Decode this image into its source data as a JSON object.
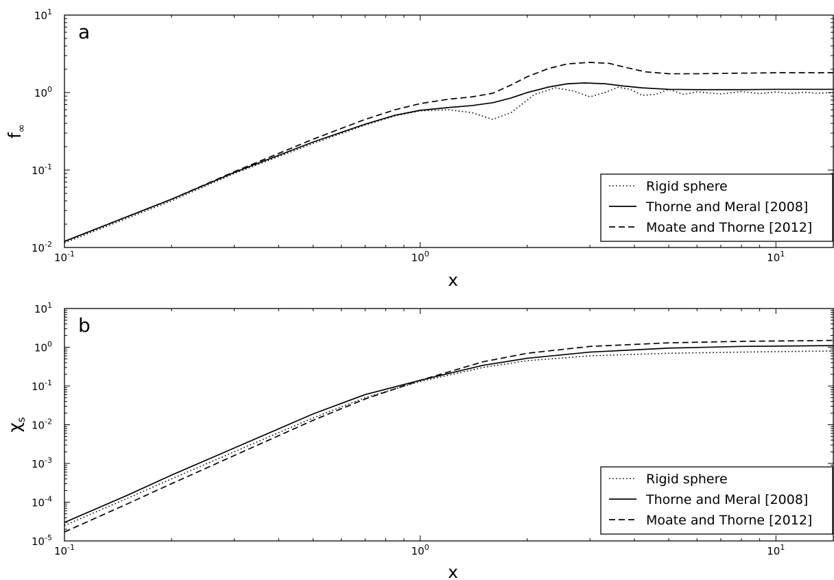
{
  "chart_data": [
    {
      "type": "line",
      "panel_label": "a",
      "xlabel": "x",
      "ylabel": "f",
      "ylabel_sub": "∞",
      "x_scale": "log",
      "y_scale": "log",
      "xlim": [
        0.1,
        14.5
      ],
      "ylim": [
        0.01,
        10
      ],
      "x_ticks": [
        {
          "value": 0.1,
          "base": "10",
          "exp": "-1"
        },
        {
          "value": 1,
          "base": "10",
          "exp": "0"
        },
        {
          "value": 10,
          "base": "10",
          "exp": "1"
        }
      ],
      "y_ticks": [
        {
          "value": 0.01,
          "base": "10",
          "exp": "-2"
        },
        {
          "value": 0.1,
          "base": "10",
          "exp": "-1"
        },
        {
          "value": 1,
          "base": "10",
          "exp": "0"
        },
        {
          "value": 10,
          "base": "10",
          "exp": "1"
        }
      ],
      "grid": false,
      "legend_position": "lower-right",
      "series": [
        {
          "name": "Rigid sphere",
          "style": "dotted",
          "x": [
            0.1,
            0.2,
            0.3,
            0.5,
            0.7,
            0.85,
            1.0,
            1.2,
            1.4,
            1.6,
            1.8,
            2.1,
            2.4,
            2.7,
            3.0,
            3.3,
            3.6,
            3.9,
            4.2,
            4.6,
            5.0,
            5.5,
            6.0,
            7.0,
            8.0,
            9.0,
            10.0,
            11.0,
            12.0,
            13.0,
            14.5
          ],
          "y": [
            0.0115,
            0.04,
            0.09,
            0.22,
            0.38,
            0.5,
            0.58,
            0.6,
            0.55,
            0.45,
            0.55,
            0.95,
            1.15,
            1.05,
            0.88,
            1.0,
            1.17,
            1.1,
            0.92,
            0.95,
            1.1,
            0.95,
            1.02,
            0.96,
            1.03,
            0.97,
            1.02,
            0.97,
            1.01,
            0.98,
            1.0
          ]
        },
        {
          "name": "Thorne and Meral [2008]",
          "style": "solid",
          "x": [
            0.1,
            0.2,
            0.3,
            0.5,
            0.7,
            0.85,
            1.0,
            1.2,
            1.4,
            1.6,
            1.8,
            2.0,
            2.3,
            2.6,
            2.9,
            3.3,
            3.7,
            4.2,
            5.0,
            6.0,
            8.0,
            10.0,
            14.5
          ],
          "y": [
            0.012,
            0.042,
            0.093,
            0.23,
            0.39,
            0.51,
            0.59,
            0.64,
            0.68,
            0.74,
            0.85,
            1.0,
            1.18,
            1.3,
            1.33,
            1.3,
            1.22,
            1.15,
            1.1,
            1.09,
            1.09,
            1.1,
            1.1
          ]
        },
        {
          "name": "Moate and Thorne [2012]",
          "style": "dashed",
          "x": [
            0.1,
            0.2,
            0.3,
            0.5,
            0.7,
            0.85,
            1.0,
            1.2,
            1.4,
            1.6,
            1.8,
            2.0,
            2.3,
            2.6,
            3.0,
            3.4,
            3.8,
            4.3,
            5.0,
            6.0,
            8.0,
            10.0,
            14.5
          ],
          "y": [
            0.012,
            0.042,
            0.095,
            0.25,
            0.45,
            0.6,
            0.72,
            0.82,
            0.88,
            0.98,
            1.25,
            1.6,
            2.05,
            2.35,
            2.45,
            2.38,
            2.1,
            1.85,
            1.75,
            1.75,
            1.78,
            1.8,
            1.8
          ]
        }
      ]
    },
    {
      "type": "line",
      "panel_label": "b",
      "xlabel": "x",
      "ylabel": "χ",
      "ylabel_sub": "s",
      "x_scale": "log",
      "y_scale": "log",
      "xlim": [
        0.1,
        14.5
      ],
      "ylim": [
        1e-05,
        10
      ],
      "x_ticks": [
        {
          "value": 0.1,
          "base": "10",
          "exp": "-1"
        },
        {
          "value": 1,
          "base": "10",
          "exp": "0"
        },
        {
          "value": 10,
          "base": "10",
          "exp": "1"
        }
      ],
      "y_ticks": [
        {
          "value": 1e-05,
          "base": "10",
          "exp": "-5"
        },
        {
          "value": 0.0001,
          "base": "10",
          "exp": "-4"
        },
        {
          "value": 0.001,
          "base": "10",
          "exp": "-3"
        },
        {
          "value": 0.01,
          "base": "10",
          "exp": "-2"
        },
        {
          "value": 0.1,
          "base": "10",
          "exp": "-1"
        },
        {
          "value": 1,
          "base": "10",
          "exp": "0"
        },
        {
          "value": 10,
          "base": "10",
          "exp": "1"
        }
      ],
      "grid": false,
      "legend_position": "lower-right",
      "series": [
        {
          "name": "Rigid sphere",
          "style": "dotted",
          "x": [
            0.1,
            0.15,
            0.2,
            0.3,
            0.5,
            0.7,
            1.0,
            1.5,
            2.0,
            3.0,
            5.0,
            8.0,
            14.5
          ],
          "y": [
            2.5e-05,
            0.000125,
            0.0004,
            0.002,
            0.015,
            0.05,
            0.13,
            0.3,
            0.45,
            0.6,
            0.7,
            0.75,
            0.8
          ]
        },
        {
          "name": "Thorne and Meral [2008]",
          "style": "solid",
          "x": [
            0.1,
            0.15,
            0.2,
            0.3,
            0.5,
            0.7,
            1.0,
            1.5,
            2.0,
            3.0,
            5.0,
            8.0,
            14.5
          ],
          "y": [
            3e-05,
            0.00015,
            0.0005,
            0.0025,
            0.019,
            0.06,
            0.14,
            0.34,
            0.52,
            0.75,
            0.95,
            1.05,
            1.1
          ]
        },
        {
          "name": "Moate and Thorne [2012]",
          "style": "dashed",
          "x": [
            0.1,
            0.15,
            0.2,
            0.3,
            0.5,
            0.7,
            1.0,
            1.5,
            2.0,
            3.0,
            5.0,
            8.0,
            14.5
          ],
          "y": [
            1.7e-05,
            9e-05,
            0.0003,
            0.0016,
            0.013,
            0.046,
            0.14,
            0.42,
            0.7,
            1.05,
            1.3,
            1.42,
            1.5
          ]
        }
      ]
    }
  ]
}
